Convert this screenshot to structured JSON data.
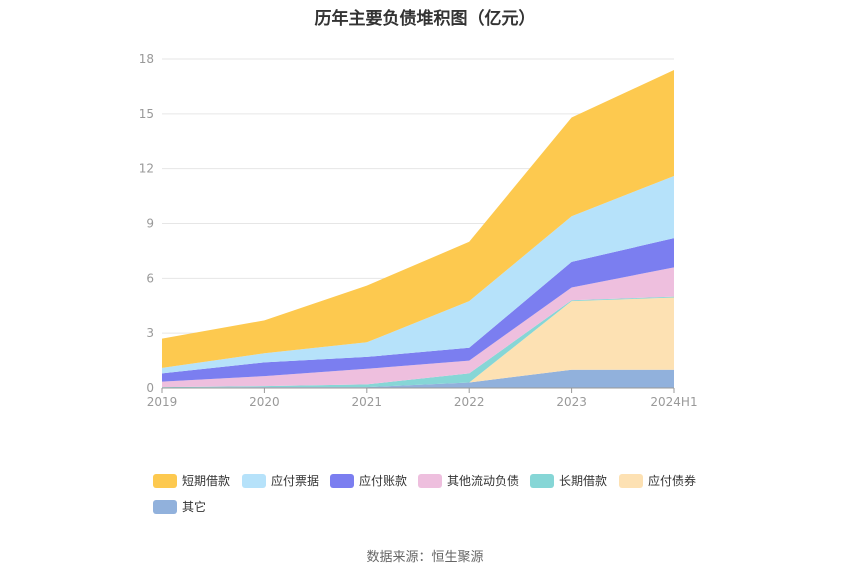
{
  "chart_data": {
    "type": "area",
    "title": "历年主要负债堆积图（亿元）",
    "categories": [
      "2019",
      "2020",
      "2021",
      "2022",
      "2023",
      "2024H1"
    ],
    "ylim": [
      0,
      18
    ],
    "yticks": [
      "0",
      "3",
      "6",
      "9",
      "12",
      "15",
      "18"
    ],
    "grid": true,
    "legend_position": "bottom",
    "series": [
      {
        "name": "其它",
        "color": "#91b1dc",
        "values": [
          0.02,
          0.05,
          0.05,
          0.3,
          1.0,
          1.0
        ]
      },
      {
        "name": "应付债券",
        "color": "#fde1b3",
        "values": [
          0,
          0,
          0,
          0,
          3.75,
          3.95
        ]
      },
      {
        "name": "长期借款",
        "color": "#86d6d6",
        "values": [
          0.03,
          0.05,
          0.15,
          0.5,
          0.05,
          0.05
        ]
      },
      {
        "name": "其他流动负债",
        "color": "#eebfde",
        "values": [
          0.3,
          0.55,
          0.85,
          0.7,
          0.7,
          1.6
        ]
      },
      {
        "name": "应付账款",
        "color": "#7b7ef0",
        "values": [
          0.45,
          0.75,
          0.65,
          0.7,
          1.4,
          1.6
        ]
      },
      {
        "name": "应付票据",
        "color": "#b6e2fa",
        "values": [
          0.3,
          0.5,
          0.8,
          2.55,
          2.5,
          3.4
        ]
      },
      {
        "name": "短期借款",
        "color": "#fdc94f",
        "values": [
          1.6,
          1.8,
          3.1,
          3.25,
          5.4,
          5.8
        ]
      }
    ]
  },
  "source": "数据来源：恒生聚源"
}
